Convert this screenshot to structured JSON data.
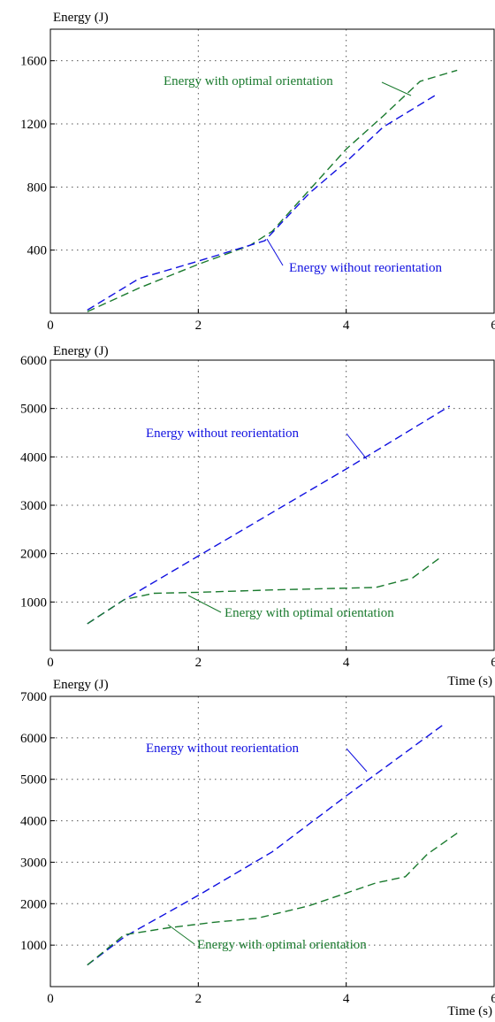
{
  "colors": {
    "without": "#1010e0",
    "optimal": "#1a7a2e",
    "axis": "#000000",
    "grid": "#555555"
  },
  "chart_data": [
    {
      "type": "line",
      "ylabel": "Energy (J)",
      "xlabel": "",
      "xlim": [
        0,
        6
      ],
      "ylim": [
        0,
        1800
      ],
      "xticks": [
        0,
        2,
        4,
        6
      ],
      "yticks": [
        400,
        800,
        1200,
        1600
      ],
      "grid": true,
      "series": [
        {
          "name": "Energy with optimal orientation",
          "color": "#1a7a2e",
          "x": [
            0.5,
            1.2,
            2.0,
            2.7,
            3.0,
            3.5,
            4.0,
            4.5,
            5.0,
            5.5
          ],
          "y": [
            10,
            160,
            310,
            430,
            520,
            780,
            1040,
            1250,
            1470,
            1540
          ]
        },
        {
          "name": "Energy without reorientation",
          "color": "#1010e0",
          "x": [
            0.5,
            1.2,
            2.0,
            2.9,
            3.5,
            4.0,
            4.5,
            5.2
          ],
          "y": [
            20,
            220,
            330,
            460,
            760,
            960,
            1180,
            1380
          ]
        }
      ],
      "annotations": [
        {
          "text": "Energy with optimal orientation",
          "series": 0
        },
        {
          "text": "Energy without reorientation",
          "series": 1
        }
      ]
    },
    {
      "type": "line",
      "ylabel": "Energy (J)",
      "xlabel": "Time (s)",
      "xlim": [
        0,
        6
      ],
      "ylim": [
        0,
        6000
      ],
      "xticks": [
        0,
        2,
        4,
        6
      ],
      "yticks": [
        1000,
        2000,
        3000,
        4000,
        5000,
        6000
      ],
      "grid": true,
      "series": [
        {
          "name": "Energy without reorientation",
          "color": "#1010e0",
          "x": [
            0.5,
            1.0,
            2.0,
            3.0,
            4.0,
            5.4
          ],
          "y": [
            550,
            1050,
            1950,
            2850,
            3750,
            5050
          ]
        },
        {
          "name": "Energy with optimal orientation",
          "color": "#1a7a2e",
          "x": [
            0.5,
            1.0,
            1.4,
            2.0,
            3.0,
            4.4,
            4.9,
            5.3
          ],
          "y": [
            550,
            1050,
            1180,
            1200,
            1250,
            1300,
            1500,
            1950
          ]
        }
      ],
      "annotations": [
        {
          "text": "Energy without reorientation",
          "series": 0
        },
        {
          "text": "Energy with optimal orientation",
          "series": 1
        }
      ]
    },
    {
      "type": "line",
      "ylabel": "Energy (J)",
      "xlabel": "Time (s)",
      "xlim": [
        0,
        6
      ],
      "ylim": [
        0,
        7000
      ],
      "xticks": [
        0,
        2,
        4,
        6
      ],
      "yticks": [
        1000,
        2000,
        3000,
        4000,
        5000,
        6000,
        7000
      ],
      "grid": true,
      "series": [
        {
          "name": "Energy without reorientation",
          "color": "#1010e0",
          "x": [
            0.5,
            1.0,
            2.0,
            3.0,
            4.0,
            5.3
          ],
          "y": [
            520,
            1200,
            2200,
            3250,
            4600,
            6300
          ]
        },
        {
          "name": "Energy with optimal orientation",
          "color": "#1a7a2e",
          "x": [
            0.5,
            1.0,
            1.6,
            2.2,
            2.8,
            3.5,
            4.4,
            4.8,
            5.1,
            5.5
          ],
          "y": [
            520,
            1250,
            1420,
            1550,
            1650,
            1950,
            2500,
            2650,
            3200,
            3700
          ]
        }
      ],
      "annotations": [
        {
          "text": "Energy without reorientation",
          "series": 0
        },
        {
          "text": "Energy with optimal orientation",
          "series": 1
        }
      ]
    }
  ]
}
